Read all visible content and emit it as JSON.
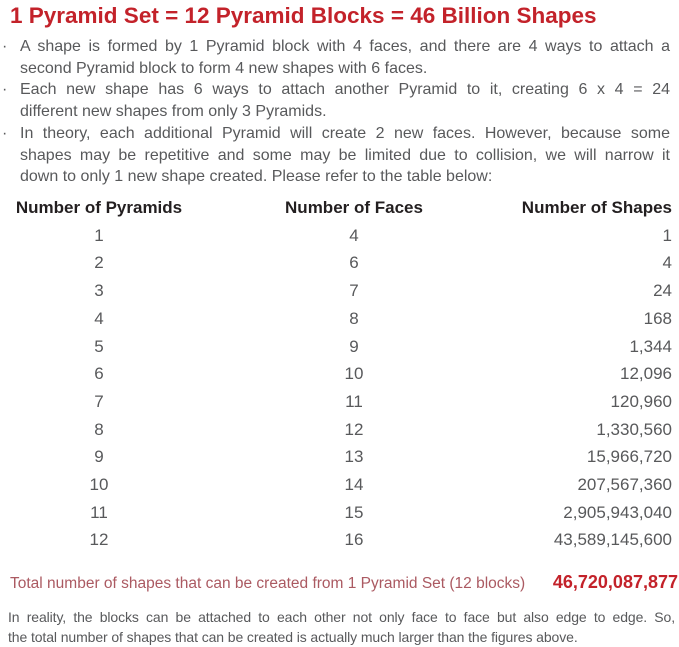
{
  "title": "1 Pyramid Set = 12 Pyramid Blocks = 46 Billion Shapes",
  "bullet_char": "·",
  "colors": {
    "accent_red": "#c3222a",
    "muted_red": "#ab5a62",
    "body_gray": "#58595b",
    "heading_black": "#231f20"
  },
  "bullets": [
    {
      "lines": [
        "A shape is formed by 1 Pyramid block with 4 faces, and there are 4 ways to attach a",
        "second Pyramid block to form 4 new shapes with 6 faces."
      ]
    },
    {
      "lines": [
        "Each new shape has 6 ways to attach another Pyramid to it, creating 6 x 4 = 24",
        "different new shapes from only 3 Pyramids."
      ]
    },
    {
      "lines": [
        "In theory, each additional Pyramid will create 2 new faces. However, because some",
        "shapes may be repetitive and some may be limited due to collision, we will narrow it",
        "down to only 1 new shape created. Please refer to the table below:"
      ]
    }
  ],
  "table": {
    "headers": [
      "Number of Pyramids",
      "Number of Faces",
      "Number of Shapes"
    ],
    "rows": [
      [
        "1",
        "4",
        "1"
      ],
      [
        "2",
        "6",
        "4"
      ],
      [
        "3",
        "7",
        "24"
      ],
      [
        "4",
        "8",
        "168"
      ],
      [
        "5",
        "9",
        "1,344"
      ],
      [
        "6",
        "10",
        "12,096"
      ],
      [
        "7",
        "11",
        "120,960"
      ],
      [
        "8",
        "12",
        "1,330,560"
      ],
      [
        "9",
        "13",
        "15,966,720"
      ],
      [
        "10",
        "14",
        "207,567,360"
      ],
      [
        "11",
        "15",
        "2,905,943,040"
      ],
      [
        "12",
        "16",
        "43,589,145,600"
      ]
    ]
  },
  "total": {
    "label": "Total number of shapes that can be created from 1 Pyramid Set (12 blocks)",
    "value": "46,720,087,877"
  },
  "footer": {
    "lines": [
      "In reality, the blocks can be attached to each other not only face to face but also edge to edge. So,",
      "the total number of shapes that can be created is actually much larger than the figures above."
    ]
  }
}
